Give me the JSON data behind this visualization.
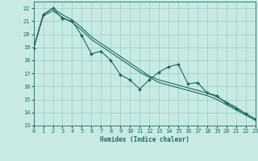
{
  "xlabel": "Humidex (Indice chaleur)",
  "background_color": "#c8eae5",
  "grid_color": "#99ccc5",
  "line_color": "#1a6b5e",
  "xlim": [
    0,
    23
  ],
  "ylim": [
    13,
    22.5
  ],
  "yticks": [
    13,
    14,
    15,
    16,
    17,
    18,
    19,
    20,
    21,
    22
  ],
  "xticks": [
    0,
    1,
    2,
    3,
    4,
    5,
    6,
    7,
    8,
    9,
    10,
    11,
    12,
    13,
    14,
    15,
    16,
    17,
    18,
    19,
    20,
    21,
    22,
    23
  ],
  "series": [
    {
      "x": [
        0,
        1,
        2,
        3,
        4,
        5,
        6,
        7,
        8,
        9,
        10,
        11,
        12,
        13,
        14,
        15,
        16,
        17,
        18,
        19,
        20,
        21,
        22,
        23
      ],
      "y": [
        18.9,
        21.5,
        22.0,
        21.5,
        21.1,
        20.5,
        19.8,
        19.3,
        18.8,
        18.3,
        17.8,
        17.3,
        16.8,
        16.5,
        16.3,
        16.1,
        15.9,
        15.7,
        15.5,
        15.2,
        14.8,
        14.4,
        13.9,
        13.5
      ]
    },
    {
      "x": [
        0,
        1,
        2,
        3,
        4,
        5,
        6,
        7,
        8,
        9,
        10,
        11,
        12,
        13,
        14,
        15,
        16,
        17,
        18,
        19,
        20,
        21,
        22,
        23
      ],
      "y": [
        18.9,
        21.4,
        21.8,
        21.3,
        20.9,
        20.3,
        19.6,
        19.1,
        18.6,
        18.1,
        17.6,
        17.1,
        16.7,
        16.3,
        16.1,
        15.9,
        15.7,
        15.5,
        15.3,
        15.0,
        14.6,
        14.2,
        13.8,
        13.4
      ]
    },
    {
      "x": [
        0,
        1,
        2,
        3,
        4,
        5,
        6,
        7,
        8,
        9,
        10,
        11,
        12,
        13,
        14,
        15,
        16,
        17,
        18,
        19,
        20,
        21,
        22,
        23
      ],
      "y": [
        18.9,
        21.5,
        22.0,
        21.2,
        21.0,
        19.9,
        18.5,
        18.7,
        18.0,
        16.9,
        16.5,
        15.8,
        16.5,
        17.1,
        17.5,
        17.7,
        16.2,
        16.3,
        15.5,
        15.3,
        14.7,
        14.3,
        13.9,
        13.5
      ]
    }
  ]
}
